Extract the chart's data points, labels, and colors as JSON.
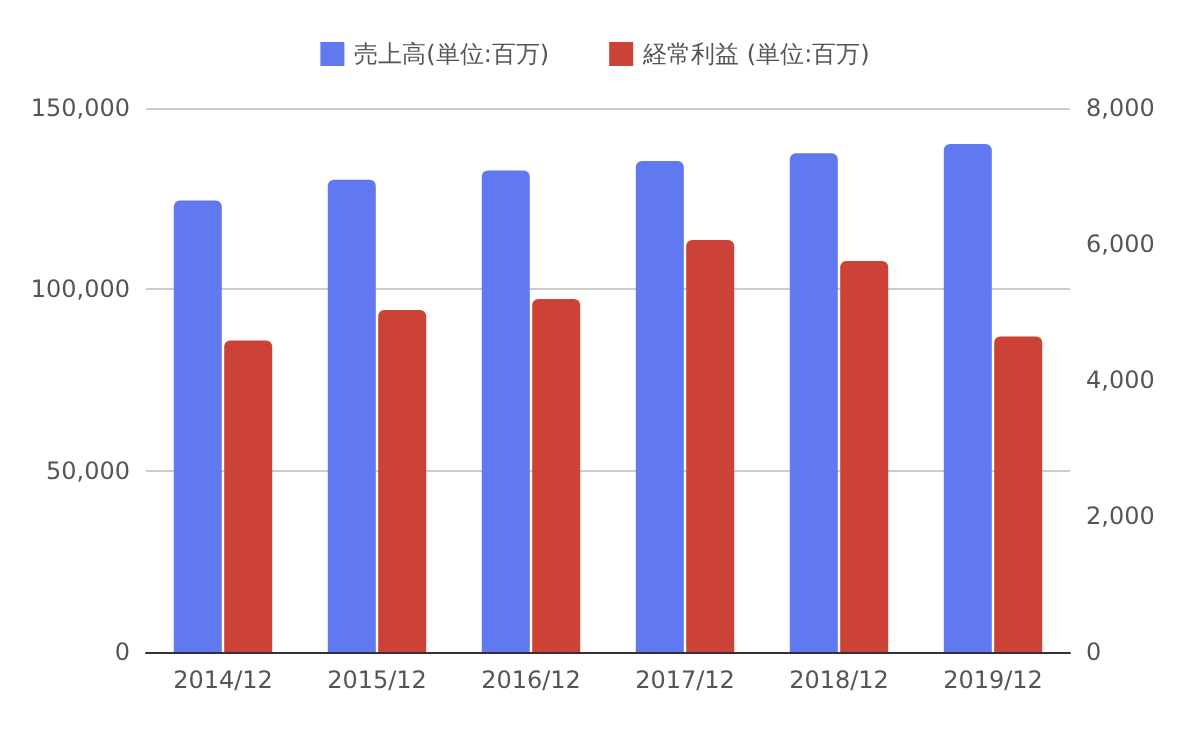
{
  "chart_data": {
    "type": "bar",
    "categories": [
      "2014/12",
      "2015/12",
      "2016/12",
      "2017/12",
      "2018/12",
      "2019/12"
    ],
    "series": [
      {
        "name": "売上高(単位:百万)",
        "color": "#6078f0",
        "values": [
          124500,
          130200,
          132800,
          135400,
          137500,
          140100
        ]
      },
      {
        "name": "経常利益 (単位:百万)",
        "color": "#cc4237",
        "axis": "y2",
        "values": [
          4580,
          5030,
          5190,
          6060,
          5750,
          4640
        ]
      }
    ],
    "ylim": [
      0,
      150000
    ],
    "yticks": [
      0,
      {
        "value": 50000,
        "label": "50,000"
      },
      {
        "value": 100000,
        "label": "100,000"
      },
      {
        "value": 150000,
        "label": "150,000"
      }
    ],
    "y2lim": [
      0,
      8000
    ],
    "y2ticks": [
      0,
      {
        "value": 2000,
        "label": "2,000"
      },
      {
        "value": 4000,
        "label": "4,000"
      },
      {
        "value": 6000,
        "label": "6,000"
      },
      {
        "value": 8000,
        "label": "8,000"
      }
    ],
    "grid": "y",
    "legend": "top"
  }
}
